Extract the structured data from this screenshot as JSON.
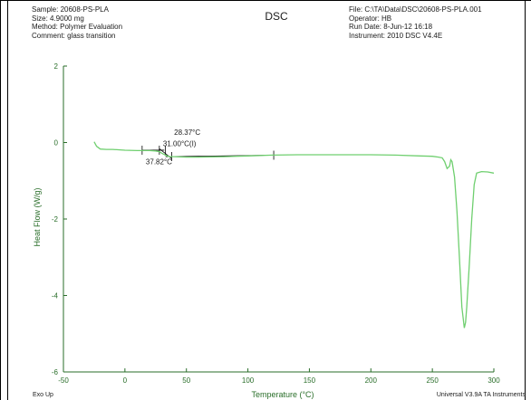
{
  "header": {
    "left": [
      "Sample: 20608-PS-PLA",
      "Size:  4.9000 mg",
      "Method: Polymer Evaluation",
      "Comment: glass transition"
    ],
    "right": [
      "File: C:\\TA\\Data\\DSC\\20608-PS-PLA.001",
      "Operator: HB",
      "Run Date: 8-Jun-12 16:18",
      "Instrument: 2010 DSC V4.4E"
    ]
  },
  "footer": {
    "left": "Exo Up",
    "right": "Universal V3.9A TA Instruments"
  },
  "colors": {
    "frame": "#000000",
    "axis": "#2a6e2a",
    "curve": "#6fcf6f",
    "annotation": "#000000"
  },
  "chart_data": {
    "type": "line",
    "title": "DSC",
    "xlabel": "Temperature (°C)",
    "ylabel": "Heat Flow (W/g)",
    "xlim": [
      -50,
      300
    ],
    "ylim": [
      -6,
      2
    ],
    "xticks": [
      -50,
      0,
      50,
      100,
      150,
      200,
      250,
      300
    ],
    "yticks": [
      -6,
      -4,
      -2,
      0,
      2
    ],
    "xtick_labels": [
      "-50",
      "0",
      "50",
      "100",
      "150",
      "200",
      "250",
      "300"
    ],
    "ytick_labels": [
      "-6",
      "-4",
      "-2",
      "0",
      "2"
    ],
    "grid": false,
    "series": [
      {
        "x": [
          -25,
          -23,
          -20,
          -15,
          -10,
          0,
          10,
          20,
          25,
          28,
          30,
          33,
          35,
          37,
          40,
          50,
          60,
          80,
          100,
          120,
          140,
          160,
          180,
          200,
          220,
          240,
          250,
          255,
          258,
          260,
          262,
          264,
          265,
          266,
          268,
          270,
          272,
          274,
          276,
          277,
          278,
          280,
          282,
          284,
          286,
          290,
          295,
          300
        ],
        "y": [
          0.02,
          -0.1,
          -0.17,
          -0.18,
          -0.18,
          -0.2,
          -0.21,
          -0.21,
          -0.22,
          -0.24,
          -0.28,
          -0.33,
          -0.36,
          -0.37,
          -0.37,
          -0.38,
          -0.38,
          -0.37,
          -0.35,
          -0.33,
          -0.32,
          -0.32,
          -0.32,
          -0.32,
          -0.33,
          -0.35,
          -0.36,
          -0.38,
          -0.4,
          -0.5,
          -0.68,
          -0.62,
          -0.45,
          -0.5,
          -0.9,
          -1.8,
          -3.0,
          -4.3,
          -4.85,
          -4.7,
          -4.3,
          -3.2,
          -2.0,
          -1.1,
          -0.8,
          -0.76,
          -0.77,
          -0.8
        ]
      }
    ],
    "annotations": [
      {
        "text": "28.37°C",
        "x": 40,
        "y": 0.2
      },
      {
        "text": "31.00°C(I)",
        "x": 31,
        "y": -0.1
      },
      {
        "text": "37.82°C",
        "x": 17,
        "y": -0.57
      }
    ],
    "tangent_lines": [
      {
        "x1": 14,
        "y1": -0.2,
        "x2": 32,
        "y2": -0.2
      },
      {
        "x1": 28,
        "y1": -0.16,
        "x2": 38,
        "y2": -0.42
      },
      {
        "x1": 33,
        "y1": -0.37,
        "x2": 121,
        "y2": -0.33
      }
    ],
    "tick_markers": [
      14,
      28,
      33,
      38,
      121
    ]
  }
}
